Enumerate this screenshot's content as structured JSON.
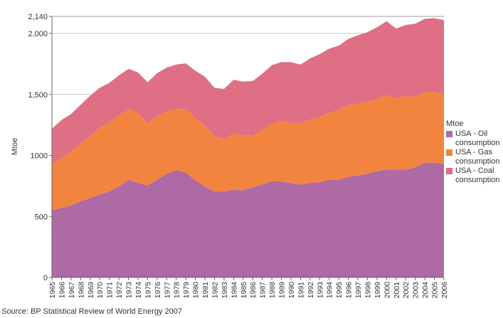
{
  "chart_data": {
    "type": "area",
    "stacked": true,
    "ylabel": "Mtoe",
    "ylim": [
      0,
      2140
    ],
    "yticks": [
      {
        "value": 0,
        "label": "0"
      },
      {
        "value": 500,
        "label": "500"
      },
      {
        "value": 1000,
        "label": "1000"
      },
      {
        "value": 1500,
        "label": "1,500"
      },
      {
        "value": 2000,
        "label": "2,000"
      },
      {
        "value": 2140,
        "label": "2,140"
      }
    ],
    "gridlines_at": [
      1500,
      2000
    ],
    "x": [
      "1965",
      "1966",
      "1967",
      "1968",
      "1969",
      "1970",
      "1971",
      "1972",
      "1973",
      "1974",
      "1975",
      "1976",
      "1977",
      "1978",
      "1979",
      "1980",
      "1981",
      "1982",
      "1983",
      "1984",
      "1985",
      "1986",
      "1987",
      "1988",
      "1989",
      "1990",
      "1991",
      "1992",
      "1993",
      "1994",
      "1995",
      "1996",
      "1997",
      "1998",
      "1999",
      "2000",
      "2001",
      "2002",
      "2003",
      "2004",
      "2005",
      "2006"
    ],
    "series": [
      {
        "name": "USA - Oil consumption",
        "color": "#ad6aa4",
        "values": [
          550,
          570,
          590,
          625,
          650,
          680,
          705,
          745,
          800,
          775,
          755,
          800,
          850,
          880,
          860,
          795,
          745,
          705,
          705,
          720,
          715,
          740,
          760,
          790,
          785,
          775,
          760,
          775,
          780,
          800,
          800,
          825,
          835,
          850,
          870,
          885,
          885,
          885,
          900,
          940,
          940,
          930
        ]
      },
      {
        "name": "USA - Gas consumption",
        "color": "#f2843f",
        "values": [
          380,
          410,
          440,
          470,
          510,
          545,
          565,
          580,
          580,
          570,
          510,
          520,
          510,
          500,
          520,
          510,
          500,
          450,
          430,
          460,
          450,
          420,
          450,
          470,
          500,
          490,
          500,
          520,
          535,
          550,
          570,
          590,
          590,
          590,
          590,
          610,
          580,
          600,
          580,
          580,
          580,
          570
        ]
      },
      {
        "name": "USA - Coal consumption",
        "color": "#df6f84",
        "values": [
          290,
          310,
          310,
          320,
          330,
          330,
          325,
          330,
          330,
          335,
          335,
          355,
          360,
          365,
          375,
          390,
          400,
          400,
          410,
          440,
          440,
          450,
          460,
          480,
          480,
          500,
          485,
          500,
          515,
          525,
          530,
          540,
          560,
          570,
          590,
          605,
          575,
          585,
          600,
          600,
          605,
          610
        ]
      }
    ]
  },
  "legend": {
    "title": "Mtoe"
  },
  "source": {
    "label": "Source:",
    "text": "BP Statistical Review of World Energy 2007"
  }
}
